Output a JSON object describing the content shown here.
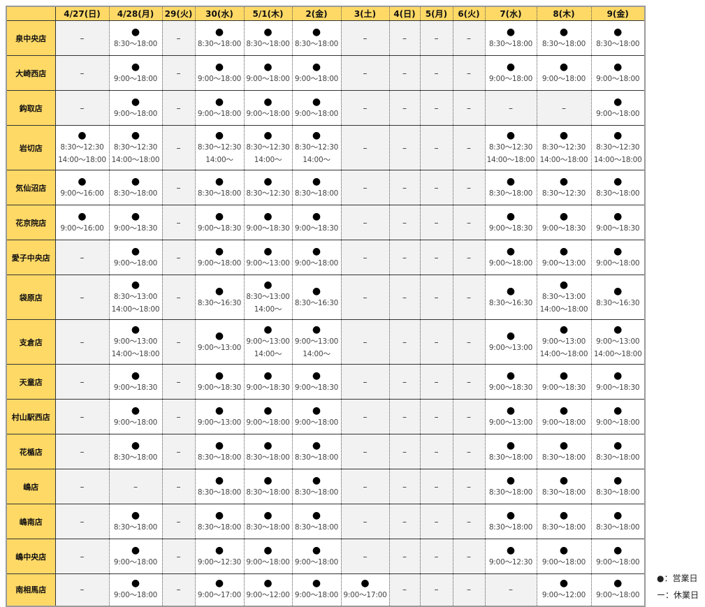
{
  "columns": [
    {
      "label": "4/27(日)",
      "holiday": false
    },
    {
      "label": "4/28(月)",
      "holiday": false
    },
    {
      "label": "29(火)",
      "holiday": true
    },
    {
      "label": "30(水)",
      "holiday": false
    },
    {
      "label": "5/1(木)",
      "holiday": false
    },
    {
      "label": "2(金)",
      "holiday": false
    },
    {
      "label": "3(土)",
      "holiday": true
    },
    {
      "label": "4(日)",
      "holiday": true
    },
    {
      "label": "5(月)",
      "holiday": true
    },
    {
      "label": "6(火)",
      "holiday": true
    },
    {
      "label": "7(水)",
      "holiday": false
    },
    {
      "label": "8(木)",
      "holiday": false
    },
    {
      "label": "9(金)",
      "holiday": false
    }
  ],
  "colors": {
    "header_bg": "#ffd966",
    "holiday_text": "#ff1a1a",
    "closed_bg": "#f2f2f2"
  },
  "open_mark": "●",
  "closed_mark": "–",
  "rows": [
    {
      "store": "泉中央店",
      "cells": [
        [],
        [
          "8:30〜18:00"
        ],
        [],
        [
          "8:30〜18:00"
        ],
        [
          "8:30〜18:00"
        ],
        [
          "8:30〜18:00"
        ],
        [],
        [],
        [],
        [],
        [
          "8:30〜18:00"
        ],
        [
          "8:30〜18:00"
        ],
        [
          "8:30〜18:00"
        ]
      ]
    },
    {
      "store": "大崎西店",
      "cells": [
        [],
        [
          "9:00〜18:00"
        ],
        [],
        [
          "9:00〜18:00"
        ],
        [
          "9:00〜18:00"
        ],
        [
          "9:00〜18:00"
        ],
        [],
        [],
        [],
        [],
        [
          "9:00〜18:00"
        ],
        [
          "9:00〜18:00"
        ],
        [
          "9:00〜18:00"
        ]
      ]
    },
    {
      "store": "鈎取店",
      "cells": [
        [],
        [
          "9:00〜18:00"
        ],
        [],
        [
          "9:00〜18:00"
        ],
        [
          "9:00〜18:00"
        ],
        [
          "9:00〜18:00"
        ],
        [],
        [],
        [],
        [],
        [],
        [],
        [
          "9:00〜18:00"
        ]
      ]
    },
    {
      "store": "岩切店",
      "cells": [
        [
          "8:30〜12:30",
          "14:00〜18:00"
        ],
        [
          "8:30〜12:30",
          "14:00〜18:00"
        ],
        [],
        [
          "8:30〜12:30",
          "14:00〜"
        ],
        [
          "8:30〜12:30",
          "14:00〜"
        ],
        [
          "8:30〜12:30",
          "14:00〜"
        ],
        [],
        [],
        [],
        [],
        [
          "8:30〜12:30",
          "14:00〜18:00"
        ],
        [
          "8:30〜12:30",
          "14:00〜18:00"
        ],
        [
          "8:30〜12:30",
          "14:00〜18:00"
        ]
      ]
    },
    {
      "store": "気仙沼店",
      "cells": [
        [
          "9:00〜16:00"
        ],
        [
          "8:30〜18:00"
        ],
        [],
        [
          "8:30〜18:00"
        ],
        [
          "8:30〜12:30"
        ],
        [
          "8:30〜18:00"
        ],
        [],
        [],
        [],
        [],
        [
          "8:30〜18:00"
        ],
        [
          "8:30〜12:30"
        ],
        [
          "8:30〜18:00"
        ]
      ]
    },
    {
      "store": "花京院店",
      "cells": [
        [
          "9:00〜16:00"
        ],
        [
          "9:00〜18:30"
        ],
        [],
        [
          "9:00〜18:30"
        ],
        [
          "9:00〜18:30"
        ],
        [
          "9:00〜18:30"
        ],
        [],
        [],
        [],
        [],
        [
          "9:00〜18:30"
        ],
        [
          "9:00〜18:30"
        ],
        [
          "9:00〜18:30"
        ]
      ]
    },
    {
      "store": "愛子中央店",
      "cells": [
        [],
        [
          "9:00〜18:00"
        ],
        [],
        [
          "9:00〜18:00"
        ],
        [
          "9:00〜13:00"
        ],
        [
          "9:00〜18:00"
        ],
        [],
        [],
        [],
        [],
        [
          "9:00〜18:00"
        ],
        [
          "9:00〜13:00"
        ],
        [
          "9:00〜18:00"
        ]
      ]
    },
    {
      "store": "袋原店",
      "cells": [
        [],
        [
          "8:30〜13:00",
          "14:00〜18:00"
        ],
        [],
        [
          "8:30〜16:30"
        ],
        [
          "8:30〜13:00",
          "14:00〜"
        ],
        [
          "8:30〜16:30"
        ],
        [],
        [],
        [],
        [],
        [
          "8:30〜16:30"
        ],
        [
          "8:30〜13:00",
          "14:00〜18:00"
        ],
        [
          "8:30〜16:30"
        ]
      ]
    },
    {
      "store": "支倉店",
      "cells": [
        [],
        [
          "9:00〜13:00",
          "14:00〜18:00"
        ],
        [],
        [
          "9:00〜13:00"
        ],
        [
          "9:00〜13:00",
          "14:00〜"
        ],
        [
          "9:00〜13:00",
          "14:00〜"
        ],
        [],
        [],
        [],
        [],
        [
          "9:00〜13:00"
        ],
        [
          "9:00〜13:00",
          "14:00〜18:00"
        ],
        [
          "9:00〜13:00",
          "14:00〜18:00"
        ]
      ]
    },
    {
      "store": "天童店",
      "cells": [
        [],
        [
          "9:00〜18:30"
        ],
        [],
        [
          "9:00〜18:30"
        ],
        [
          "9:00〜18:30"
        ],
        [
          "9:00〜18:30"
        ],
        [],
        [],
        [],
        [],
        [
          "9:00〜18:30"
        ],
        [
          "9:00〜18:30"
        ],
        [
          "9:00〜18:30"
        ]
      ]
    },
    {
      "store": "村山駅西店",
      "cells": [
        [],
        [
          "9:00〜18:00"
        ],
        [],
        [
          "9:00〜13:00"
        ],
        [
          "9:00〜18:00"
        ],
        [
          "9:00〜18:00"
        ],
        [],
        [],
        [],
        [],
        [
          "9:00〜13:00"
        ],
        [
          "9:00〜18:00"
        ],
        [
          "9:00〜18:00"
        ]
      ]
    },
    {
      "store": "花楯店",
      "cells": [
        [],
        [
          "8:30〜18:00"
        ],
        [],
        [
          "8:30〜18:00"
        ],
        [
          "8:30〜18:00"
        ],
        [
          "8:30〜18:00"
        ],
        [],
        [],
        [],
        [],
        [
          "8:30〜18:00"
        ],
        [
          "8:30〜18:00"
        ],
        [
          "8:30〜18:00"
        ]
      ]
    },
    {
      "store": "嶋店",
      "cells": [
        [],
        [],
        [],
        [
          "8:30〜18:00"
        ],
        [
          "8:30〜18:00"
        ],
        [
          "8:30〜18:00"
        ],
        [],
        [],
        [],
        [],
        [
          "8:30〜18:00"
        ],
        [
          "8:30〜18:00"
        ],
        [
          "8:30〜18:00"
        ]
      ]
    },
    {
      "store": "嶋南店",
      "cells": [
        [],
        [
          "8:30〜18:00"
        ],
        [],
        [
          "8:30〜18:00"
        ],
        [
          "8:30〜18:00"
        ],
        [
          "8:30〜18:00"
        ],
        [],
        [],
        [],
        [],
        [
          "8:30〜18:00"
        ],
        [
          "8:30〜18:00"
        ],
        [
          "8:30〜18:00"
        ]
      ]
    },
    {
      "store": "嶋中央店",
      "cells": [
        [],
        [
          "9:00〜18:00"
        ],
        [],
        [
          "9:00〜12:30"
        ],
        [
          "9:00〜18:00"
        ],
        [
          "9:00〜18:00"
        ],
        [],
        [],
        [],
        [],
        [
          "9:00〜12:30"
        ],
        [
          "9:00〜18:00"
        ],
        [
          "9:00〜18:00"
        ]
      ]
    },
    {
      "store": "南相馬店",
      "cells": [
        [],
        [
          "9:00〜18:00"
        ],
        [],
        [
          "9:00〜17:00"
        ],
        [
          "9:00〜12:00"
        ],
        [
          "9:00〜18:00"
        ],
        [
          "9:00〜17:00"
        ],
        [],
        [],
        [],
        [],
        [
          "9:00〜12:00"
        ],
        [
          "9:00〜18:00"
        ]
      ]
    }
  ],
  "legend": {
    "open": "●：営業日",
    "closed": "ー：休業日"
  }
}
